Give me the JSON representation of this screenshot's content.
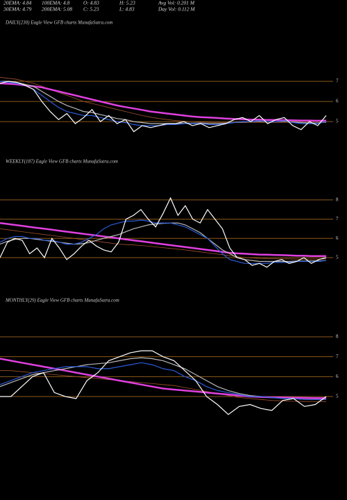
{
  "header": {
    "lines": [
      [
        "20EMA: 4.84",
        "100EMA: 4.8",
        "O: 4.83",
        "H: 5.23",
        "Avg Vol: 0.201 M"
      ],
      [
        "30EMA: 4.79",
        "200EMA: 5.08",
        "C: 5.23",
        "L: 4.83",
        "Day Vol: 0.112  M"
      ]
    ]
  },
  "chart_data": [
    {
      "type": "line",
      "title": "DAILY(230) Eagle  View  GFB charts MunafaSutra.com",
      "ylim": [
        3.45,
        9.66
      ],
      "yticks": [
        5,
        6,
        7
      ],
      "grid": true,
      "grid_color": "#8b5a1b",
      "series": [
        {
          "color": "#a0522d",
          "values": [
            7.2,
            7.15,
            7.1,
            7.0,
            6.9,
            6.75,
            6.6,
            6.45,
            6.3,
            6.15,
            6.0,
            5.9,
            5.8,
            5.7,
            5.6,
            5.5,
            5.4,
            5.3,
            5.22,
            5.15,
            5.1,
            5.05,
            5.02,
            5.0,
            4.98,
            4.96,
            4.95,
            4.95,
            4.95,
            4.95,
            4.96,
            4.96,
            4.96,
            4.96,
            4.96,
            4.95,
            4.95,
            4.94,
            4.94,
            4.95
          ]
        },
        {
          "color": "#e040e0",
          "values": [
            6.9,
            6.88,
            6.85,
            6.8,
            6.75,
            6.7,
            6.6,
            6.5,
            6.4,
            6.3,
            6.2,
            6.1,
            6.0,
            5.9,
            5.8,
            5.72,
            5.65,
            5.58,
            5.5,
            5.45,
            5.4,
            5.35,
            5.3,
            5.25,
            5.22,
            5.2,
            5.18,
            5.15,
            5.13,
            5.12,
            5.1,
            5.1,
            5.08,
            5.08,
            5.07,
            5.06,
            5.05,
            5.05,
            5.04,
            5.05
          ]
        },
        {
          "color": "#bbbbbb",
          "values": [
            7.0,
            7.0,
            6.95,
            6.85,
            6.75,
            6.5,
            6.25,
            6.0,
            5.8,
            5.65,
            5.5,
            5.45,
            5.35,
            5.25,
            5.15,
            5.1,
            5.0,
            4.95,
            4.9,
            4.9,
            4.9,
            4.9,
            4.92,
            4.92,
            4.93,
            4.9,
            4.9,
            4.92,
            4.95,
            4.98,
            5.0,
            5.02,
            5.0,
            5.0,
            5.02,
            4.98,
            4.95,
            4.93,
            4.93,
            4.98
          ]
        },
        {
          "color": "#2a5bd7",
          "values": [
            7.0,
            6.95,
            6.9,
            6.8,
            6.6,
            6.3,
            6.0,
            5.7,
            5.5,
            5.4,
            5.3,
            5.3,
            5.2,
            5.1,
            5.0,
            4.95,
            4.85,
            4.8,
            4.8,
            4.8,
            4.85,
            4.85,
            4.9,
            4.9,
            4.9,
            4.85,
            4.85,
            4.9,
            4.95,
            5.0,
            5.0,
            5.05,
            5.0,
            5.0,
            5.05,
            4.95,
            4.9,
            4.9,
            4.9,
            5.0
          ]
        },
        {
          "color": "#ffffff",
          "values": [
            6.9,
            7.0,
            6.95,
            6.8,
            6.6,
            6.0,
            5.5,
            5.1,
            5.4,
            4.9,
            5.2,
            5.6,
            5.0,
            5.3,
            4.9,
            5.1,
            4.5,
            4.8,
            4.7,
            4.8,
            4.9,
            4.9,
            5.0,
            4.8,
            4.9,
            4.7,
            4.8,
            4.9,
            5.1,
            5.2,
            5.0,
            5.3,
            4.9,
            5.1,
            5.2,
            4.8,
            4.6,
            5.0,
            4.8,
            5.3
          ]
        }
      ]
    },
    {
      "type": "line",
      "title": "WEEKLY(187) Eagle  View  GFB charts MunafaSutra.com",
      "ylim": [
        3.23,
        9.73
      ],
      "yticks": [
        5,
        6,
        7,
        8
      ],
      "grid": true,
      "grid_color": "#8b5a1b",
      "series": [
        {
          "color": "#a0522d",
          "values": [
            6.5,
            6.45,
            6.4,
            6.35,
            6.3,
            6.25,
            6.2,
            6.15,
            6.1,
            6.05,
            6.0,
            5.95,
            5.9,
            5.85,
            5.8,
            5.75,
            5.7,
            5.68,
            5.66,
            5.63,
            5.6,
            5.56,
            5.52,
            5.48,
            5.44,
            5.4,
            5.35,
            5.3,
            5.25,
            5.2,
            5.15,
            5.1,
            5.05,
            5.0,
            4.98,
            4.96,
            4.95,
            4.94,
            4.93,
            4.93,
            4.92,
            4.92,
            4.92,
            4.92,
            4.93
          ]
        },
        {
          "color": "#e040e0",
          "values": [
            6.8,
            6.75,
            6.7,
            6.65,
            6.6,
            6.55,
            6.5,
            6.45,
            6.4,
            6.35,
            6.3,
            6.25,
            6.2,
            6.15,
            6.1,
            6.05,
            6.0,
            5.95,
            5.9,
            5.85,
            5.8,
            5.75,
            5.7,
            5.65,
            5.6,
            5.55,
            5.5,
            5.45,
            5.4,
            5.35,
            5.3,
            5.25,
            5.22,
            5.2,
            5.18,
            5.16,
            5.15,
            5.14,
            5.13,
            5.12,
            5.1,
            5.1,
            5.08,
            5.08,
            5.08
          ]
        },
        {
          "color": "#bbbbbb",
          "values": [
            5.7,
            5.85,
            5.95,
            6.0,
            6.0,
            5.95,
            5.9,
            5.85,
            5.8,
            5.75,
            5.7,
            5.72,
            5.78,
            5.9,
            6.0,
            6.1,
            6.2,
            6.35,
            6.5,
            6.6,
            6.7,
            6.75,
            6.78,
            6.8,
            6.8,
            6.7,
            6.5,
            6.3,
            6.0,
            5.7,
            5.4,
            5.2,
            5.0,
            4.9,
            4.85,
            4.8,
            4.8,
            4.8,
            4.8,
            4.8,
            4.82,
            4.82,
            4.83,
            4.83,
            4.85
          ]
        },
        {
          "color": "#2a5bd7",
          "values": [
            5.8,
            6.0,
            6.1,
            6.1,
            6.0,
            6.0,
            5.9,
            5.9,
            5.8,
            5.7,
            5.7,
            5.8,
            6.0,
            6.2,
            6.5,
            6.7,
            6.8,
            6.9,
            6.9,
            6.95,
            6.9,
            6.8,
            6.8,
            6.8,
            6.7,
            6.6,
            6.4,
            6.2,
            6.0,
            5.6,
            5.2,
            4.9,
            4.8,
            4.7,
            4.7,
            4.7,
            4.7,
            4.75,
            4.75,
            4.75,
            4.8,
            4.8,
            4.8,
            4.8,
            4.85
          ]
        },
        {
          "color": "#ffffff",
          "values": [
            5.0,
            5.8,
            6.0,
            5.9,
            5.2,
            5.5,
            5.0,
            6.0,
            5.5,
            4.9,
            5.2,
            5.6,
            5.9,
            5.6,
            5.4,
            5.3,
            5.8,
            7.0,
            7.2,
            7.5,
            7.0,
            6.6,
            7.3,
            8.1,
            7.2,
            7.7,
            7.0,
            6.8,
            7.5,
            7.0,
            6.5,
            5.5,
            5.0,
            4.9,
            4.6,
            4.7,
            4.5,
            4.8,
            4.9,
            4.7,
            4.8,
            5.0,
            4.7,
            4.9,
            5.0
          ]
        }
      ]
    },
    {
      "type": "line",
      "title": "MONTHLY(29) Eagle  View  GFB charts MunafaSutra.com",
      "ylim": [
        3.29,
        9.57
      ],
      "yticks": [
        5,
        6,
        7,
        8
      ],
      "grid": true,
      "grid_color": "#8b5a1b",
      "series": [
        {
          "color": "#a0522d",
          "values": [
            6.3,
            6.3,
            6.25,
            6.2,
            6.15,
            6.1,
            6.05,
            6.0,
            5.95,
            5.9,
            5.85,
            5.8,
            5.75,
            5.7,
            5.65,
            5.6,
            5.55,
            5.45,
            5.35,
            5.25,
            5.15,
            5.05,
            4.95,
            4.9,
            4.85,
            4.8,
            4.78,
            4.76,
            4.75,
            4.75,
            4.75
          ]
        },
        {
          "color": "#e040e0",
          "values": [
            6.9,
            6.8,
            6.7,
            6.6,
            6.5,
            6.4,
            6.3,
            6.2,
            6.1,
            6.0,
            5.9,
            5.8,
            5.7,
            5.6,
            5.5,
            5.4,
            5.35,
            5.3,
            5.25,
            5.2,
            5.15,
            5.1,
            5.05,
            5.0,
            4.98,
            4.96,
            4.95,
            4.94,
            4.93,
            4.92,
            4.92
          ]
        },
        {
          "color": "#bbbbbb",
          "values": [
            5.5,
            5.7,
            5.9,
            6.1,
            6.2,
            6.3,
            6.4,
            6.5,
            6.6,
            6.65,
            6.7,
            6.8,
            6.9,
            6.95,
            6.9,
            6.8,
            6.6,
            6.4,
            6.1,
            5.8,
            5.5,
            5.3,
            5.15,
            5.05,
            5.0,
            4.95,
            4.9,
            4.9,
            4.85,
            4.85,
            4.85
          ]
        },
        {
          "color": "#2a5bd7",
          "values": [
            5.6,
            5.8,
            6.0,
            6.2,
            6.3,
            6.4,
            6.5,
            6.5,
            6.5,
            6.4,
            6.4,
            6.5,
            6.6,
            6.7,
            6.6,
            6.4,
            6.3,
            6.0,
            5.8,
            5.5,
            5.3,
            5.2,
            5.1,
            5.0,
            5.0,
            4.95,
            4.9,
            4.9,
            4.85,
            4.85,
            4.85
          ]
        },
        {
          "color": "#ffffff",
          "values": [
            5.0,
            5.0,
            5.5,
            6.0,
            6.2,
            5.2,
            5.0,
            4.9,
            5.8,
            6.2,
            6.8,
            7.0,
            7.2,
            7.3,
            7.3,
            7.0,
            6.8,
            6.3,
            5.8,
            5.0,
            4.6,
            4.1,
            4.5,
            4.6,
            4.4,
            4.3,
            4.8,
            4.9,
            4.5,
            4.6,
            5.0
          ]
        }
      ]
    }
  ]
}
